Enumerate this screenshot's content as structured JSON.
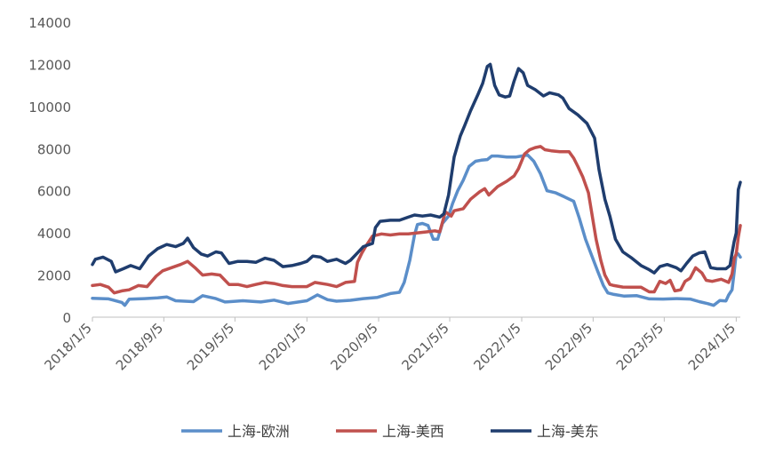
{
  "chart_data": {
    "type": "line",
    "title": "",
    "xlabel": "",
    "ylabel": "",
    "ylim": [
      0,
      14000
    ],
    "y_ticks": [
      "0",
      "2000",
      "4000",
      "6000",
      "8000",
      "10000",
      "12000",
      "14000"
    ],
    "x_ticks": [
      "2018/1/5",
      "2018/9/5",
      "2019/5/5",
      "2020/1/5",
      "2020/9/5",
      "2021/5/5",
      "2022/1/5",
      "2022/9/5",
      "2023/5/5",
      "2024/1/5"
    ],
    "x_range": [
      "2018/1/5",
      "2024/1/19"
    ],
    "grid": false,
    "legend_position": "bottom",
    "series": [
      {
        "name": "上海-欧洲",
        "color": "#5b8ec9",
        "points": [
          [
            "2018/1/5",
            900
          ],
          [
            "2018/3/1",
            870
          ],
          [
            "2018/4/15",
            700
          ],
          [
            "2018/4/25",
            560
          ],
          [
            "2018/5/10",
            850
          ],
          [
            "2018/7/1",
            880
          ],
          [
            "2018/8/15",
            920
          ],
          [
            "2018/9/15",
            960
          ],
          [
            "2018/10/15",
            780
          ],
          [
            "2018/12/15",
            740
          ],
          [
            "2019/1/15",
            1020
          ],
          [
            "2019/3/1",
            880
          ],
          [
            "2019/4/1",
            720
          ],
          [
            "2019/6/1",
            780
          ],
          [
            "2019/8/1",
            720
          ],
          [
            "2019/9/15",
            810
          ],
          [
            "2019/11/1",
            650
          ],
          [
            "2020/1/5",
            780
          ],
          [
            "2020/2/10",
            1060
          ],
          [
            "2020/3/15",
            830
          ],
          [
            "2020/4/15",
            760
          ],
          [
            "2020/6/1",
            800
          ],
          [
            "2020/7/15",
            880
          ],
          [
            "2020/9/1",
            940
          ],
          [
            "2020/10/15",
            1120
          ],
          [
            "2020/11/15",
            1180
          ],
          [
            "2020/12/1",
            1650
          ],
          [
            "2020/12/20",
            2700
          ],
          [
            "2021/1/5",
            3900
          ],
          [
            "2021/1/15",
            4400
          ],
          [
            "2021/2/1",
            4450
          ],
          [
            "2021/2/20",
            4350
          ],
          [
            "2021/3/10",
            3700
          ],
          [
            "2021/3/25",
            3700
          ],
          [
            "2021/4/10",
            4450
          ],
          [
            "2021/5/1",
            4800
          ],
          [
            "2021/5/15",
            5400
          ],
          [
            "2021/6/1",
            6000
          ],
          [
            "2021/6/20",
            6500
          ],
          [
            "2021/7/10",
            7150
          ],
          [
            "2021/8/1",
            7400
          ],
          [
            "2021/8/20",
            7450
          ],
          [
            "2021/9/10",
            7480
          ],
          [
            "2021/9/25",
            7650
          ],
          [
            "2021/10/15",
            7650
          ],
          [
            "2021/11/15",
            7600
          ],
          [
            "2021/12/15",
            7600
          ],
          [
            "2022/1/5",
            7650
          ],
          [
            "2022/1/25",
            7700
          ],
          [
            "2022/2/15",
            7400
          ],
          [
            "2022/3/10",
            6800
          ],
          [
            "2022/4/1",
            6000
          ],
          [
            "2022/5/1",
            5900
          ],
          [
            "2022/6/1",
            5700
          ],
          [
            "2022/7/1",
            5500
          ],
          [
            "2022/7/20",
            4700
          ],
          [
            "2022/8/10",
            3700
          ],
          [
            "2022/9/1",
            2900
          ],
          [
            "2022/9/20",
            2200
          ],
          [
            "2022/10/10",
            1500
          ],
          [
            "2022/10/25",
            1150
          ],
          [
            "2022/11/15",
            1080
          ],
          [
            "2022/12/20",
            1000
          ],
          [
            "2023/2/1",
            1020
          ],
          [
            "2023/3/15",
            870
          ],
          [
            "2023/5/1",
            860
          ],
          [
            "2023/6/15",
            880
          ],
          [
            "2023/8/1",
            860
          ],
          [
            "2023/9/1",
            740
          ],
          [
            "2023/10/1",
            640
          ],
          [
            "2023/10/20",
            560
          ],
          [
            "2023/11/10",
            790
          ],
          [
            "2023/12/1",
            770
          ],
          [
            "2023/12/10",
            1050
          ],
          [
            "2023/12/22",
            1300
          ],
          [
            "2023/12/29",
            2150
          ],
          [
            "2024/1/5",
            3050
          ],
          [
            "2024/1/12",
            3000
          ],
          [
            "2024/1/19",
            2850
          ]
        ]
      },
      {
        "name": "上海-美西",
        "color": "#c0504d",
        "points": [
          [
            "2018/1/5",
            1500
          ],
          [
            "2018/2/1",
            1550
          ],
          [
            "2018/3/1",
            1420
          ],
          [
            "2018/3/20",
            1150
          ],
          [
            "2018/4/15",
            1250
          ],
          [
            "2018/5/10",
            1300
          ],
          [
            "2018/6/10",
            1500
          ],
          [
            "2018/7/10",
            1450
          ],
          [
            "2018/8/10",
            1950
          ],
          [
            "2018/9/1",
            2200
          ],
          [
            "2018/10/1",
            2350
          ],
          [
            "2018/11/1",
            2500
          ],
          [
            "2018/11/25",
            2650
          ],
          [
            "2018/12/20",
            2350
          ],
          [
            "2019/1/15",
            2000
          ],
          [
            "2019/2/15",
            2050
          ],
          [
            "2019/3/15",
            2000
          ],
          [
            "2019/4/15",
            1550
          ],
          [
            "2019/5/15",
            1550
          ],
          [
            "2019/6/15",
            1450
          ],
          [
            "2019/7/15",
            1550
          ],
          [
            "2019/8/15",
            1650
          ],
          [
            "2019/9/15",
            1600
          ],
          [
            "2019/10/15",
            1500
          ],
          [
            "2019/11/15",
            1450
          ],
          [
            "2019/12/15",
            1450
          ],
          [
            "2020/1/5",
            1450
          ],
          [
            "2020/2/1",
            1650
          ],
          [
            "2020/3/15",
            1550
          ],
          [
            "2020/4/15",
            1450
          ],
          [
            "2020/5/15",
            1650
          ],
          [
            "2020/6/15",
            1700
          ],
          [
            "2020/6/25",
            2600
          ],
          [
            "2020/7/10",
            3050
          ],
          [
            "2020/7/25",
            3400
          ],
          [
            "2020/8/15",
            3850
          ],
          [
            "2020/9/15",
            3950
          ],
          [
            "2020/10/15",
            3900
          ],
          [
            "2020/11/15",
            3950
          ],
          [
            "2020/12/15",
            3950
          ],
          [
            "2021/1/15",
            4000
          ],
          [
            "2021/2/15",
            4050
          ],
          [
            "2021/3/15",
            4100
          ],
          [
            "2021/4/1",
            4050
          ],
          [
            "2021/4/20",
            5000
          ],
          [
            "2021/5/10",
            4800
          ],
          [
            "2021/5/20",
            5050
          ],
          [
            "2021/6/20",
            5150
          ],
          [
            "2021/7/15",
            5600
          ],
          [
            "2021/8/15",
            5950
          ],
          [
            "2021/9/1",
            6100
          ],
          [
            "2021/9/15",
            5800
          ],
          [
            "2021/10/15",
            6200
          ],
          [
            "2021/11/15",
            6450
          ],
          [
            "2021/12/10",
            6700
          ],
          [
            "2021/12/25",
            7050
          ],
          [
            "2022/1/15",
            7750
          ],
          [
            "2022/2/1",
            7950
          ],
          [
            "2022/2/20",
            8050
          ],
          [
            "2022/3/10",
            8100
          ],
          [
            "2022/3/25",
            7950
          ],
          [
            "2022/4/15",
            7900
          ],
          [
            "2022/5/15",
            7850
          ],
          [
            "2022/6/15",
            7850
          ],
          [
            "2022/7/1",
            7550
          ],
          [
            "2022/7/15",
            7150
          ],
          [
            "2022/8/1",
            6650
          ],
          [
            "2022/8/20",
            5900
          ],
          [
            "2022/9/1",
            4900
          ],
          [
            "2022/9/15",
            3700
          ],
          [
            "2022/10/1",
            2700
          ],
          [
            "2022/10/15",
            2000
          ],
          [
            "2022/11/1",
            1550
          ],
          [
            "2022/11/15",
            1500
          ],
          [
            "2022/12/15",
            1430
          ],
          [
            "2023/1/15",
            1420
          ],
          [
            "2023/2/15",
            1420
          ],
          [
            "2023/3/15",
            1200
          ],
          [
            "2023/4/1",
            1200
          ],
          [
            "2023/4/20",
            1700
          ],
          [
            "2023/5/10",
            1600
          ],
          [
            "2023/5/25",
            1750
          ],
          [
            "2023/6/10",
            1250
          ],
          [
            "2023/6/30",
            1300
          ],
          [
            "2023/7/15",
            1700
          ],
          [
            "2023/8/1",
            1850
          ],
          [
            "2023/8/20",
            2350
          ],
          [
            "2023/9/10",
            2100
          ],
          [
            "2023/9/25",
            1750
          ],
          [
            "2023/10/15",
            1700
          ],
          [
            "2023/11/15",
            1800
          ],
          [
            "2023/12/10",
            1650
          ],
          [
            "2023/12/22",
            2050
          ],
          [
            "2023/12/29",
            2800
          ],
          [
            "2024/1/5",
            3000
          ],
          [
            "2024/1/12",
            3800
          ],
          [
            "2024/1/19",
            4350
          ]
        ]
      },
      {
        "name": "上海-美东",
        "color": "#1f3d6e",
        "points": [
          [
            "2018/1/5",
            2500
          ],
          [
            "2018/1/15",
            2750
          ],
          [
            "2018/2/10",
            2850
          ],
          [
            "2018/3/10",
            2650
          ],
          [
            "2018/3/25",
            2150
          ],
          [
            "2018/4/20",
            2300
          ],
          [
            "2018/5/15",
            2450
          ],
          [
            "2018/6/15",
            2300
          ],
          [
            "2018/7/15",
            2900
          ],
          [
            "2018/8/15",
            3250
          ],
          [
            "2018/9/15",
            3450
          ],
          [
            "2018/10/15",
            3350
          ],
          [
            "2018/11/10",
            3500
          ],
          [
            "2018/11/25",
            3750
          ],
          [
            "2018/12/15",
            3300
          ],
          [
            "2019/1/10",
            3000
          ],
          [
            "2019/2/1",
            2900
          ],
          [
            "2019/3/1",
            3100
          ],
          [
            "2019/3/20",
            3050
          ],
          [
            "2019/4/15",
            2550
          ],
          [
            "2019/5/15",
            2650
          ],
          [
            "2019/6/15",
            2650
          ],
          [
            "2019/7/15",
            2600
          ],
          [
            "2019/8/15",
            2800
          ],
          [
            "2019/9/15",
            2700
          ],
          [
            "2019/10/15",
            2400
          ],
          [
            "2019/11/15",
            2450
          ],
          [
            "2019/12/15",
            2550
          ],
          [
            "2020/1/5",
            2650
          ],
          [
            "2020/1/25",
            2900
          ],
          [
            "2020/2/20",
            2850
          ],
          [
            "2020/3/15",
            2650
          ],
          [
            "2020/4/15",
            2750
          ],
          [
            "2020/5/15",
            2550
          ],
          [
            "2020/6/1",
            2700
          ],
          [
            "2020/6/25",
            3050
          ],
          [
            "2020/7/15",
            3350
          ],
          [
            "2020/8/15",
            3500
          ],
          [
            "2020/8/25",
            4250
          ],
          [
            "2020/9/10",
            4550
          ],
          [
            "2020/10/15",
            4600
          ],
          [
            "2020/11/15",
            4600
          ],
          [
            "2020/12/15",
            4750
          ],
          [
            "2021/1/5",
            4850
          ],
          [
            "2021/2/1",
            4800
          ],
          [
            "2021/3/1",
            4850
          ],
          [
            "2021/4/1",
            4750
          ],
          [
            "2021/4/15",
            4900
          ],
          [
            "2021/5/1",
            5800
          ],
          [
            "2021/5/20",
            7600
          ],
          [
            "2021/6/10",
            8600
          ],
          [
            "2021/6/25",
            9100
          ],
          [
            "2021/7/15",
            9800
          ],
          [
            "2021/8/10",
            10600
          ],
          [
            "2021/8/25",
            11100
          ],
          [
            "2021/9/10",
            11900
          ],
          [
            "2021/9/20",
            12000
          ],
          [
            "2021/10/5",
            11000
          ],
          [
            "2021/10/20",
            10550
          ],
          [
            "2021/11/10",
            10450
          ],
          [
            "2021/11/25",
            10500
          ],
          [
            "2021/12/10",
            11200
          ],
          [
            "2021/12/25",
            11800
          ],
          [
            "2022/1/10",
            11600
          ],
          [
            "2022/1/25",
            11000
          ],
          [
            "2022/2/20",
            10800
          ],
          [
            "2022/3/20",
            10500
          ],
          [
            "2022/4/10",
            10650
          ],
          [
            "2022/5/10",
            10550
          ],
          [
            "2022/5/25",
            10400
          ],
          [
            "2022/6/15",
            9900
          ],
          [
            "2022/7/15",
            9600
          ],
          [
            "2022/8/15",
            9200
          ],
          [
            "2022/9/10",
            8500
          ],
          [
            "2022/9/25",
            7000
          ],
          [
            "2022/10/15",
            5600
          ],
          [
            "2022/11/1",
            4800
          ],
          [
            "2022/11/20",
            3700
          ],
          [
            "2022/12/15",
            3100
          ],
          [
            "2023/1/15",
            2800
          ],
          [
            "2023/2/15",
            2450
          ],
          [
            "2023/3/15",
            2250
          ],
          [
            "2023/4/1",
            2100
          ],
          [
            "2023/4/20",
            2400
          ],
          [
            "2023/5/15",
            2500
          ],
          [
            "2023/6/15",
            2350
          ],
          [
            "2023/7/1",
            2200
          ],
          [
            "2023/7/20",
            2550
          ],
          [
            "2023/8/10",
            2900
          ],
          [
            "2023/9/1",
            3050
          ],
          [
            "2023/9/20",
            3100
          ],
          [
            "2023/10/10",
            2350
          ],
          [
            "2023/11/1",
            2300
          ],
          [
            "2023/12/1",
            2300
          ],
          [
            "2023/12/15",
            2450
          ],
          [
            "2023/12/22",
            3050
          ],
          [
            "2023/12/29",
            3600
          ],
          [
            "2024/1/5",
            4000
          ],
          [
            "2024/1/12",
            6050
          ],
          [
            "2024/1/19",
            6400
          ]
        ]
      }
    ]
  }
}
